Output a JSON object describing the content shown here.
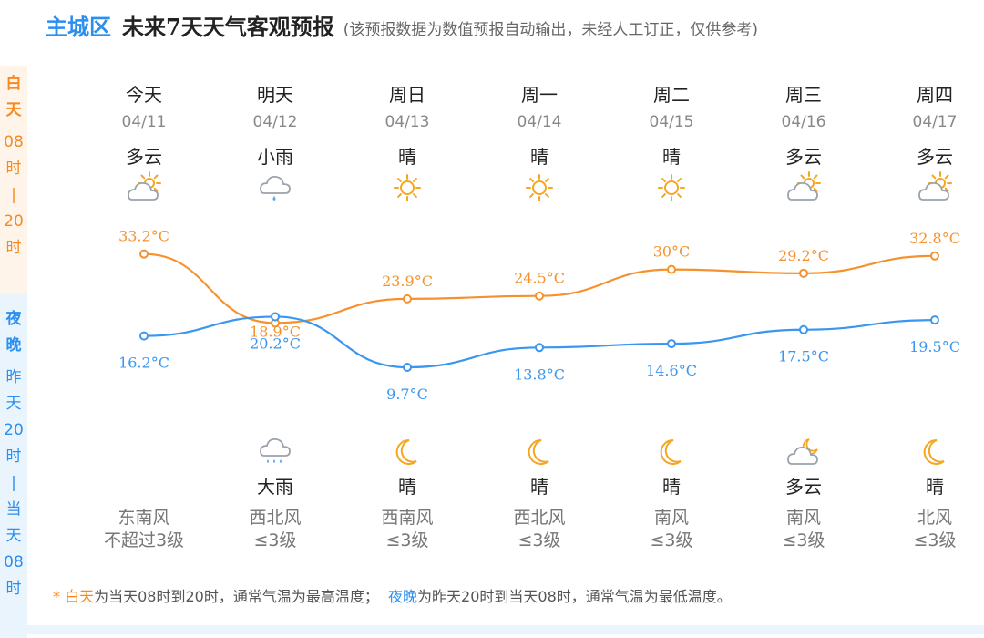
{
  "header": {
    "city": "主城区",
    "title": "未来7天天气客观预报",
    "note": "(该预报数据为数值预报自动输出，未经人工订正，仅供参考)"
  },
  "side": {
    "day_label": [
      "白",
      "天"
    ],
    "day_range": [
      "08",
      "时",
      "|",
      "20",
      "时"
    ],
    "night_label": [
      "夜",
      "晚"
    ],
    "night_range": [
      "昨",
      "天",
      "20",
      "时",
      "|",
      "当",
      "天",
      "08",
      "时"
    ]
  },
  "days": [
    {
      "name": "今天",
      "date": "04/11",
      "day_weather": "多云",
      "day_icon": "partly-cloudy-icon",
      "night_weather": "",
      "night_icon": "",
      "wind_dir": "东南风",
      "wind_level": "不超过3级"
    },
    {
      "name": "明天",
      "date": "04/12",
      "day_weather": "小雨",
      "day_icon": "light-rain-icon",
      "night_weather": "大雨",
      "night_icon": "heavy-rain-icon",
      "wind_dir": "西北风",
      "wind_level": "≤3级"
    },
    {
      "name": "周日",
      "date": "04/13",
      "day_weather": "晴",
      "day_icon": "sun-icon",
      "night_weather": "晴",
      "night_icon": "moon-icon",
      "wind_dir": "西南风",
      "wind_level": "≤3级"
    },
    {
      "name": "周一",
      "date": "04/14",
      "day_weather": "晴",
      "day_icon": "sun-icon",
      "night_weather": "晴",
      "night_icon": "moon-icon",
      "wind_dir": "西北风",
      "wind_level": "≤3级"
    },
    {
      "name": "周二",
      "date": "04/15",
      "day_weather": "晴",
      "day_icon": "sun-icon",
      "night_weather": "晴",
      "night_icon": "moon-icon",
      "wind_dir": "南风",
      "wind_level": "≤3级"
    },
    {
      "name": "周三",
      "date": "04/16",
      "day_weather": "多云",
      "day_icon": "partly-cloudy-icon",
      "night_weather": "多云",
      "night_icon": "cloudy-night-icon",
      "wind_dir": "南风",
      "wind_level": "≤3级"
    },
    {
      "name": "周四",
      "date": "04/17",
      "day_weather": "多云",
      "day_icon": "partly-cloudy-icon",
      "night_weather": "晴",
      "night_icon": "moon-icon",
      "wind_dir": "北风",
      "wind_level": "≤3级"
    }
  ],
  "chart_data": {
    "type": "line",
    "categories": [
      "04/11",
      "04/12",
      "04/13",
      "04/14",
      "04/15",
      "04/16",
      "04/17"
    ],
    "unit": "°C",
    "series": [
      {
        "name": "白天",
        "color": "#f5922f",
        "values": [
          33.2,
          18.9,
          23.9,
          24.5,
          30,
          29.2,
          32.8
        ],
        "labels": [
          "33.2°C",
          "18.9°C",
          "23.9°C",
          "24.5°C",
          "30°C",
          "29.2°C",
          "32.8°C"
        ]
      },
      {
        "name": "夜晚",
        "color": "#3a96ee",
        "values": [
          16.2,
          20.2,
          9.7,
          13.8,
          14.6,
          17.5,
          19.5
        ],
        "labels": [
          "16.2°C",
          "20.2°C",
          "9.7°C",
          "13.8°C",
          "14.6°C",
          "17.5°C",
          "19.5°C"
        ]
      }
    ]
  },
  "footer": {
    "star": "* ",
    "day_term": "白天",
    "day_desc": "为当天08时到20时，通常气温为最高温度；",
    "night_term": "夜晚",
    "night_desc": "为昨天20时到当天08时，通常气温为最低温度。"
  },
  "colors": {
    "accent": "#2b8ff0",
    "day": "#f58a1f",
    "night": "#2b8ff0"
  }
}
